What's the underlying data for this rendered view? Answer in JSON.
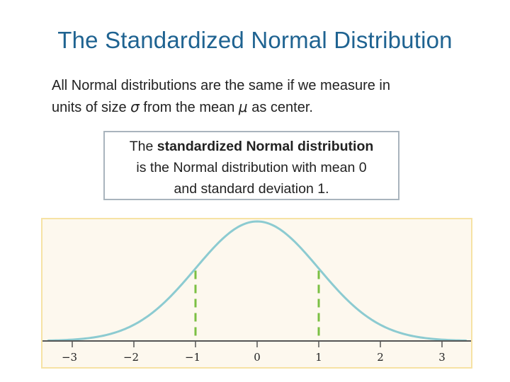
{
  "slide": {
    "title": "The Standardized Normal Distribution",
    "intro": {
      "line1": "All Normal distributions are the same if we measure in",
      "line2_pre": "units of size ",
      "sigma": "σ",
      "line2_mid": " from the mean ",
      "mu": "μ",
      "line2_post": " as center."
    },
    "definition": {
      "pre": "The ",
      "bold": "standardized Normal distribution",
      "post_line2": "is the Normal distribution with mean 0",
      "post_line3": "and standard deviation 1."
    }
  },
  "chart_data": {
    "type": "line",
    "title": "",
    "xlabel": "",
    "ylabel": "",
    "function": "standard normal density",
    "mean": 0,
    "sd": 1,
    "xlim": [
      -3.4,
      3.4
    ],
    "x_ticks": [
      -3,
      -2,
      -1,
      0,
      1,
      2,
      3
    ],
    "x_tick_labels": [
      "−3",
      "−2",
      "−1",
      "0",
      "1",
      "2",
      "3"
    ],
    "reference_lines": [
      -1,
      1
    ],
    "grid": false,
    "colors": {
      "curve": "#8ccbd1",
      "reference": "#7bc043",
      "axis": "#555555",
      "frame_bg": "#fdf8ee",
      "frame_border": "#f6e2a4"
    }
  }
}
